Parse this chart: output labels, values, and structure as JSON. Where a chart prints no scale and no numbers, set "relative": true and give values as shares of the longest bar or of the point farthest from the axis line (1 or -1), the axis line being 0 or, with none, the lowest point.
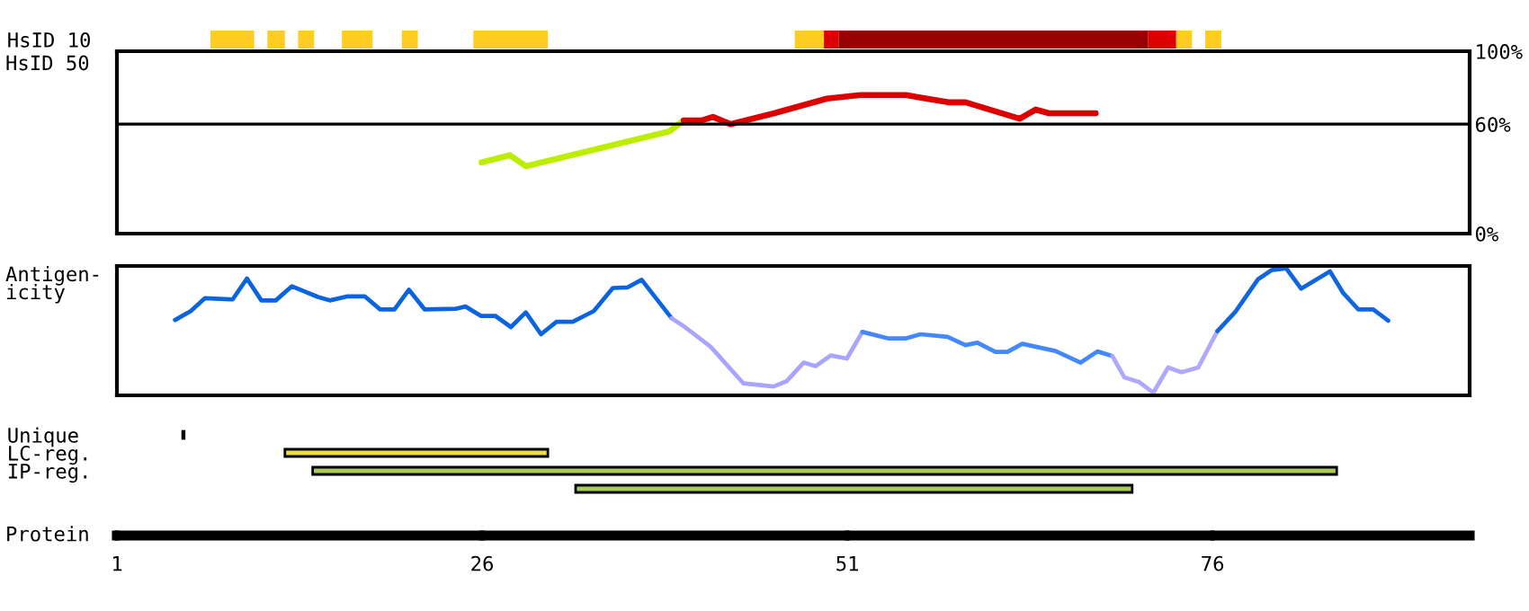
{
  "chart_data": [
    {
      "type": "bar",
      "orientation": "horizontal",
      "categories": [
        "HsID 10"
      ],
      "xlim": [
        1,
        93.6
      ],
      "tick_labels": "y",
      "series": [
        {
          "color": "#ffcc22",
          "base": [
            7.4
          ],
          "values": [
            3
          ]
        },
        {
          "color": "#ffcc22",
          "base": [
            11.3
          ],
          "values": [
            1.2
          ]
        },
        {
          "color": "#ffcc22",
          "base": [
            13.4
          ],
          "values": [
            1.1
          ]
        },
        {
          "color": "#ffcc22",
          "base": [
            16.4
          ],
          "values": [
            2.1
          ]
        },
        {
          "color": "#ffcc22",
          "base": [
            20.5
          ],
          "values": [
            1.1
          ]
        },
        {
          "color": "#ffcc22",
          "base": [
            25.4
          ],
          "values": [
            5.1
          ]
        },
        {
          "color": "#ffcc22",
          "base": [
            47.4
          ],
          "values": [
            2
          ]
        },
        {
          "color": "#dd0000",
          "base": [
            49.4
          ],
          "values": [
            1
          ]
        },
        {
          "color": "#990000",
          "base": [
            50.4
          ],
          "values": [
            21.2
          ]
        },
        {
          "color": "#dd0000",
          "base": [
            71.6
          ],
          "values": [
            2
          ]
        },
        {
          "color": "#ffcc22",
          "base": [
            73.5
          ],
          "values": [
            1.1
          ]
        },
        {
          "color": "#ffcc22",
          "base": [
            75.5
          ],
          "values": [
            1.1
          ]
        }
      ]
    },
    {
      "type": "line",
      "ylabel": "HsID 50",
      "xlim": [
        1,
        93.6
      ],
      "ylim": [
        0,
        100
      ],
      "yticks": [
        {
          "value": 0,
          "label": "0%"
        },
        {
          "value": 60,
          "label": "60%"
        },
        {
          "value": 100,
          "label": "100%"
        }
      ],
      "tick_labels": "y",
      "ref_lines": [
        {
          "axis": "y",
          "value": 60,
          "color": "#000000"
        }
      ],
      "line_style": "solid",
      "series": [
        {
          "color": "#bbee00",
          "x": [
            25.96,
            27.9,
            29.0,
            38.8,
            39.8
          ],
          "values": [
            39,
            43,
            37,
            56,
            62
          ]
        },
        {
          "color": "#dd0000",
          "x": [
            39.8,
            41.0,
            41.8,
            43.0,
            46.0,
            49.6,
            51.9,
            55.0,
            57.9,
            59.1,
            62.8,
            63.9,
            64.8,
            68.0
          ],
          "values": [
            62,
            62,
            64,
            60,
            66,
            74,
            76,
            76,
            72,
            72,
            63,
            68,
            66,
            66
          ]
        }
      ]
    },
    {
      "type": "line",
      "ylabel": "Antigen-\nicity",
      "relative": true,
      "xlim": [
        1,
        93.6
      ],
      "tick_labels": false,
      "line_style": "solid",
      "series": [
        {
          "color": "#0a64e0",
          "x": [
            4.98,
            6.05,
            7.03,
            8.92,
            9.9,
            10.89,
            11.87,
            12.98,
            14.76,
            15.57,
            16.8,
            17.96,
            19.02,
            20.0,
            20.99,
            22.06,
            24.19,
            24.86,
            25.91,
            26.9,
            27.97,
            28.99,
            30.03,
            31.09,
            32.2,
            33.64,
            34.95,
            35.94,
            36.92,
            38.97
          ],
          "values": [
            0.586,
            0.657,
            0.761,
            0.751,
            0.919,
            0.743,
            0.743,
            0.857,
            0.771,
            0.743,
            0.776,
            0.776,
            0.671,
            0.671,
            0.829,
            0.671,
            0.676,
            0.694,
            0.619,
            0.619,
            0.529,
            0.647,
            0.471,
            0.571,
            0.571,
            0.657,
            0.843,
            0.847,
            0.909,
            0.6
          ]
        },
        {
          "color": "#a8a4ff",
          "x": [
            38.97,
            39.79,
            41.64,
            43.89,
            45.95,
            46.85,
            48.01,
            48.82,
            49.86,
            50.97,
            52.03
          ],
          "values": [
            0.6,
            0.537,
            0.371,
            0.076,
            0.051,
            0.094,
            0.243,
            0.214,
            0.3,
            0.276,
            0.49
          ]
        },
        {
          "color": "#4488ff",
          "x": [
            52.03,
            53.83,
            54.98,
            56.01,
            57.86,
            59.09,
            59.9,
            61.14,
            61.96,
            62.98,
            65.25,
            66.97,
            68.12,
            69.14
          ],
          "values": [
            0.49,
            0.437,
            0.437,
            0.471,
            0.451,
            0.384,
            0.403,
            0.329,
            0.329,
            0.394,
            0.337,
            0.243,
            0.333,
            0.296
          ]
        },
        {
          "color": "#b0a8ff",
          "x": [
            69.14,
            69.97,
            70.99,
            71.94,
            72.96,
            73.87,
            75.02,
            76.33
          ],
          "values": [
            0.296,
            0.124,
            0.086,
            0.0,
            0.204,
            0.166,
            0.204,
            0.496
          ]
        },
        {
          "color": "#1166dd",
          "x": [
            76.33,
            77.57,
            79.12,
            80.03,
            81.05,
            82.07,
            84.04,
            84.96,
            85.98,
            87.0,
            88.03
          ],
          "values": [
            0.496,
            0.653,
            0.914,
            0.986,
            1.0,
            0.837,
            0.976,
            0.8,
            0.671,
            0.671,
            0.58
          ]
        }
      ]
    },
    {
      "type": "bar",
      "orientation": "horizontal",
      "categories": [
        "Unique",
        "LC-reg.",
        "IP-reg.",
        null
      ],
      "xlabel": "Protein",
      "xlim": [
        1,
        93.6
      ],
      "xticks": [
        1,
        26,
        51,
        76
      ],
      "base": [
        5.5,
        12.5,
        14.4,
        32.4
      ],
      "values": [
        0.1,
        18,
        70.1,
        38.1
      ],
      "colors": [
        "#000000",
        "#eedd44",
        "#a8cc55",
        "#a8cc55"
      ]
    }
  ]
}
